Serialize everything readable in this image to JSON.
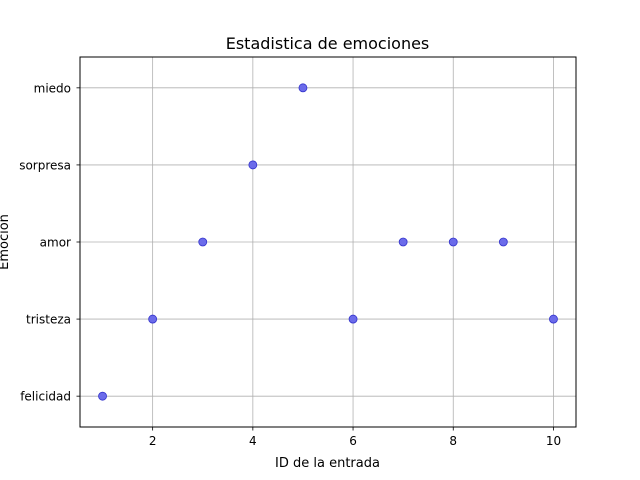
{
  "chart_data": {
    "type": "scatter",
    "title": "Estadistica de emociones",
    "xlabel": "ID de la entrada",
    "ylabel": "Emoción",
    "xlim": [
      0.55,
      10.45
    ],
    "x_ticks": [
      2,
      4,
      6,
      8,
      10
    ],
    "categories": [
      "felicidad",
      "tristeza",
      "amor",
      "sorpresa",
      "miedo"
    ],
    "grid": true,
    "marker_color": "#6b6bea",
    "marker_edge_color": "#3333cc",
    "points": [
      {
        "x": 1,
        "y": "felicidad"
      },
      {
        "x": 2,
        "y": "tristeza"
      },
      {
        "x": 3,
        "y": "amor"
      },
      {
        "x": 4,
        "y": "sorpresa"
      },
      {
        "x": 5,
        "y": "miedo"
      },
      {
        "x": 6,
        "y": "tristeza"
      },
      {
        "x": 7,
        "y": "amor"
      },
      {
        "x": 8,
        "y": "amor"
      },
      {
        "x": 9,
        "y": "amor"
      },
      {
        "x": 10,
        "y": "tristeza"
      }
    ]
  }
}
